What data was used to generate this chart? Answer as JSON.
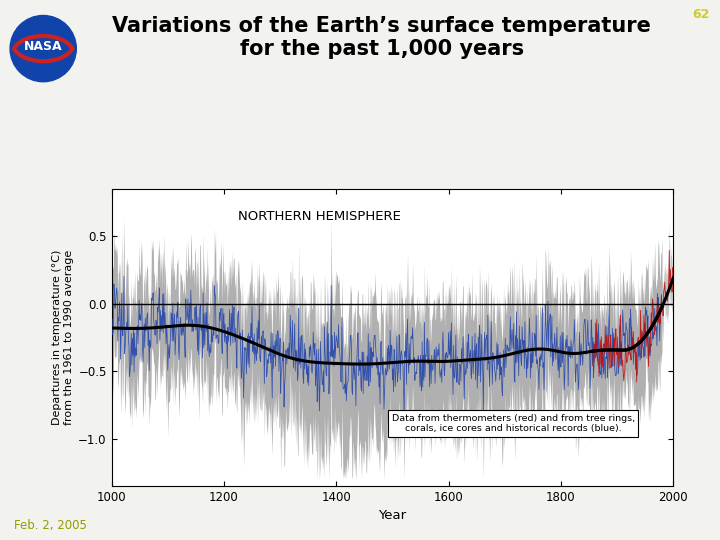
{
  "title_line1": "Variations of the Earth’s surface temperature",
  "title_line2": "for the past 1,000 years",
  "title_fontsize": 15,
  "xlabel": "Year",
  "ylabel_line1": "Departures in temperature (°C)",
  "ylabel_line2": "from the 1961 to 1990 average",
  "xlim": [
    1000,
    2000
  ],
  "ylim": [
    -1.35,
    0.85
  ],
  "yticks": [
    -1.0,
    -0.5,
    0.0,
    0.5
  ],
  "xticks": [
    1000,
    1200,
    1400,
    1600,
    1800,
    2000
  ],
  "annotation_text": "Data from thermometers (red) and from tree rings,\ncorals, ice cores and historical records (blue).",
  "inner_label": "NORTHERN HEMISPHERE",
  "slide_number": "62",
  "date_text": "Feb. 2, 2005",
  "background_color": "#f2f2ee",
  "plot_bg_color": "#ffffff",
  "gray_color": "#b0b0b0",
  "blue_color": "#2244aa",
  "red_color": "#bb1111",
  "black_color": "#000000",
  "seed": 12345
}
